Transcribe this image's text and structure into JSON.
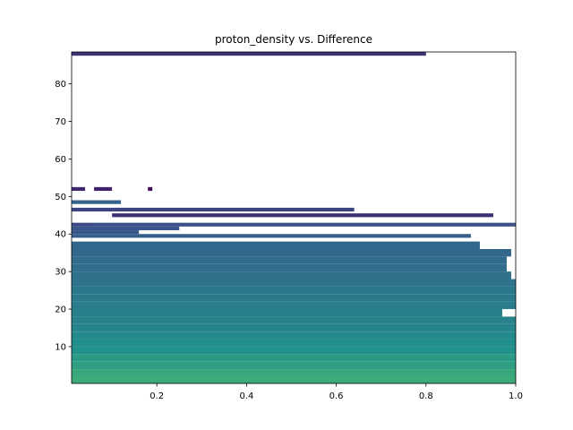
{
  "chart_data": {
    "type": "heatmap",
    "title": "proton_density vs. Difference",
    "xlabel": "",
    "ylabel": "",
    "xlim": [
      0.01,
      1.0
    ],
    "ylim": [
      0.2,
      88.5
    ],
    "x_ticks": [
      0.2,
      0.4,
      0.6,
      0.8,
      1.0
    ],
    "x_tick_labels": [
      "0.2",
      "0.4",
      "0.6",
      "0.8",
      "1.0"
    ],
    "y_ticks": [
      10,
      20,
      30,
      40,
      50,
      60,
      70,
      80
    ],
    "y_tick_labels": [
      "10",
      "20",
      "30",
      "40",
      "50",
      "60",
      "70",
      "80"
    ],
    "colormap": [
      "#440154",
      "#3b528b",
      "#21918c",
      "#5ec962",
      "#fde725"
    ],
    "grid": false,
    "legend": "none",
    "bands": [
      {
        "y": [
          0.2,
          2.0
        ],
        "x": [
          0.01,
          1.0
        ],
        "value": 0.62
      },
      {
        "y": [
          2.0,
          4.0
        ],
        "x": [
          0.01,
          1.0
        ],
        "value": 0.6
      },
      {
        "y": [
          4.0,
          6.0
        ],
        "x": [
          0.01,
          1.0
        ],
        "value": 0.56
      },
      {
        "y": [
          6.0,
          8.0
        ],
        "x": [
          0.01,
          1.0
        ],
        "value": 0.54
      },
      {
        "y": [
          8.0,
          10.0
        ],
        "x": [
          0.01,
          1.0
        ],
        "value": 0.5
      },
      {
        "y": [
          10.0,
          12.0
        ],
        "x": [
          0.01,
          1.0
        ],
        "value": 0.49
      },
      {
        "y": [
          12.0,
          14.0
        ],
        "x": [
          0.01,
          1.0
        ],
        "value": 0.47
      },
      {
        "y": [
          14.0,
          16.0
        ],
        "x": [
          0.01,
          1.0
        ],
        "value": 0.45
      },
      {
        "y": [
          16.0,
          18.0
        ],
        "x": [
          0.01,
          1.0
        ],
        "value": 0.44
      },
      {
        "y": [
          18.0,
          20.0
        ],
        "x": [
          0.01,
          0.97
        ],
        "value": 0.43
      },
      {
        "y": [
          20.0,
          22.0
        ],
        "x": [
          0.01,
          1.0
        ],
        "value": 0.42
      },
      {
        "y": [
          22.0,
          24.0
        ],
        "x": [
          0.01,
          1.0
        ],
        "value": 0.41
      },
      {
        "y": [
          24.0,
          26.0
        ],
        "x": [
          0.01,
          1.0
        ],
        "value": 0.4
      },
      {
        "y": [
          26.0,
          28.0
        ],
        "x": [
          0.01,
          1.0
        ],
        "value": 0.38
      },
      {
        "y": [
          28.0,
          30.0
        ],
        "x": [
          0.01,
          0.99
        ],
        "value": 0.37
      },
      {
        "y": [
          30.0,
          32.0
        ],
        "x": [
          0.01,
          0.98
        ],
        "value": 0.36
      },
      {
        "y": [
          32.0,
          34.0
        ],
        "x": [
          0.01,
          0.98
        ],
        "value": 0.35
      },
      {
        "y": [
          34.0,
          36.0
        ],
        "x": [
          0.01,
          0.99
        ],
        "value": 0.34
      },
      {
        "y": [
          36.0,
          38.0
        ],
        "x": [
          0.01,
          0.92
        ],
        "value": 0.33
      },
      {
        "y": [
          39.0,
          40.0
        ],
        "x": [
          0.01,
          0.9
        ],
        "value": 0.3
      },
      {
        "y": [
          40.0,
          41.0
        ],
        "x": [
          0.01,
          0.16
        ],
        "value": 0.28
      },
      {
        "y": [
          41.0,
          42.0
        ],
        "x": [
          0.01,
          0.25
        ],
        "value": 0.26
      },
      {
        "y": [
          42.0,
          43.0
        ],
        "x": [
          0.01,
          0.06
        ],
        "value": 0.22
      },
      {
        "y": [
          42.0,
          43.0
        ],
        "x": [
          0.06,
          1.0
        ],
        "value": 0.24
      },
      {
        "y": [
          44.5,
          45.5
        ],
        "x": [
          0.1,
          0.95
        ],
        "value": 0.14
      },
      {
        "y": [
          46.0,
          47.0
        ],
        "x": [
          0.01,
          0.64
        ],
        "value": 0.2
      },
      {
        "y": [
          48.0,
          49.0
        ],
        "x": [
          0.01,
          0.12
        ],
        "value": 0.32
      },
      {
        "y": [
          51.5,
          52.5
        ],
        "x": [
          0.01,
          0.04
        ],
        "value": 0.12
      },
      {
        "y": [
          51.5,
          52.5
        ],
        "x": [
          0.06,
          0.1
        ],
        "value": 0.1
      },
      {
        "y": [
          51.5,
          52.5
        ],
        "x": [
          0.18,
          0.19
        ],
        "value": 0.05
      },
      {
        "y": [
          87.5,
          88.5
        ],
        "x": [
          0.01,
          0.8
        ],
        "value": 0.15
      }
    ]
  }
}
